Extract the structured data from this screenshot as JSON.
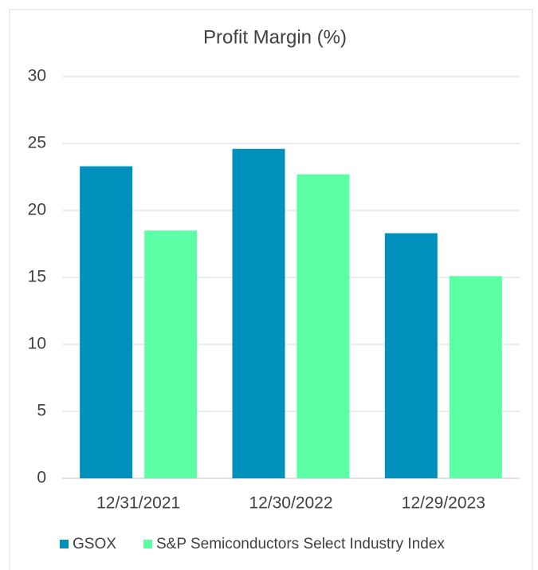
{
  "chart_data": {
    "type": "bar",
    "title": "Profit Margin (%)",
    "categories": [
      "12/31/2021",
      "12/30/2022",
      "12/29/2023"
    ],
    "series": [
      {
        "name": "GSOX",
        "color": "#0090bc",
        "values": [
          23.3,
          24.6,
          18.3
        ]
      },
      {
        "name": "S&P Semiconductors Select Industry Index",
        "color": "#5cffa3",
        "values": [
          18.5,
          22.7,
          15.1
        ]
      }
    ],
    "ylim": [
      0,
      30
    ],
    "yticks": [
      0,
      5,
      10,
      15,
      20,
      25,
      30
    ],
    "grid": true,
    "legend": "bottom"
  }
}
